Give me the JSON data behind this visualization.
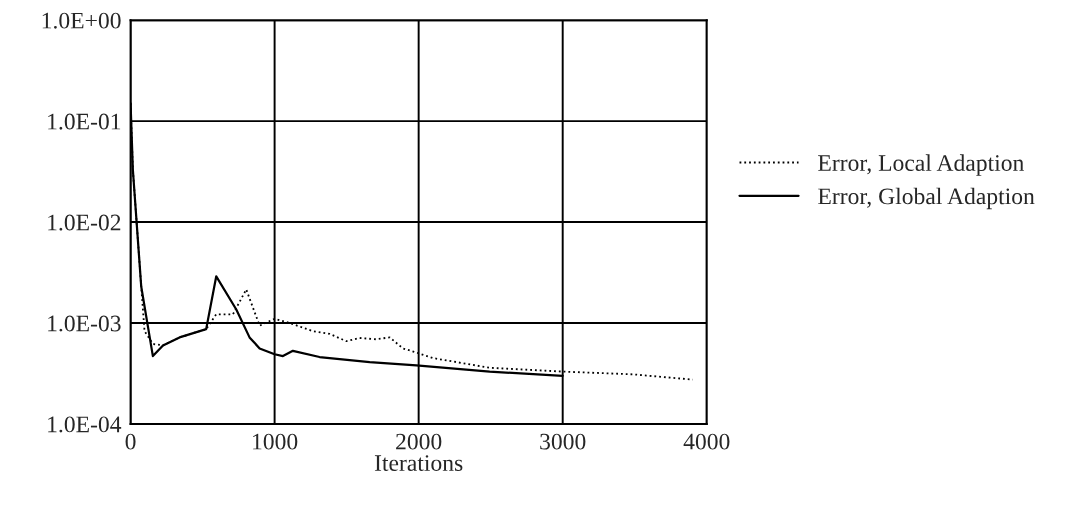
{
  "chart_data": {
    "type": "line",
    "xlabel": "Iterations",
    "log": "y",
    "xlim": [
      0,
      4000
    ],
    "xticks": [
      0,
      1000,
      2000,
      3000,
      4000
    ],
    "ylim": [
      0.0001,
      1
    ],
    "yticks": [
      {
        "value": 0.0001,
        "label": "1.0E-04"
      },
      {
        "value": 0.001,
        "label": "1.0E-03"
      },
      {
        "value": 0.01,
        "label": "1.0E-02"
      },
      {
        "value": 0.1,
        "label": "1.0E-01"
      },
      {
        "value": 1,
        "label": "1.0E+00"
      }
    ],
    "grid": true,
    "legend": "right",
    "series": [
      {
        "name": "Error, Local Adaption",
        "color": "#000000",
        "line_style": "dotted",
        "x": [
          0,
          16,
          74,
          97,
          155,
          225,
          340,
          525,
          595,
          711,
          803,
          896,
          1000,
          1104,
          1266,
          1382,
          1498,
          1590,
          1706,
          1799,
          1891,
          1984,
          2097,
          2493,
          3000,
          3486,
          3903
        ],
        "values": [
          0.15,
          0.033,
          0.0023,
          0.00083,
          0.00062,
          0.0006,
          0.00072,
          0.00087,
          0.00122,
          0.00122,
          0.00215,
          0.00094,
          0.0011,
          0.001,
          0.00083,
          0.00078,
          0.00066,
          0.00071,
          0.00069,
          0.00072,
          0.00056,
          0.00051,
          0.00045,
          0.00036,
          0.00033,
          0.00031,
          0.000275
        ]
      },
      {
        "name": "Error, Global Adaption",
        "color": "#000000",
        "line_style": "solid",
        "x": [
          0,
          16,
          74,
          120,
          155,
          225,
          340,
          525,
          595,
          734,
          826,
          896,
          1000,
          1058,
          1127,
          1312,
          1660,
          1984,
          2493,
          3000
        ],
        "values": [
          0.15,
          0.033,
          0.0023,
          0.00093,
          0.00047,
          0.0006,
          0.00072,
          0.00087,
          0.0029,
          0.00136,
          0.00072,
          0.00056,
          0.00049,
          0.00047,
          0.00053,
          0.00046,
          0.00041,
          0.00038,
          0.00033,
          0.0003
        ]
      }
    ]
  }
}
